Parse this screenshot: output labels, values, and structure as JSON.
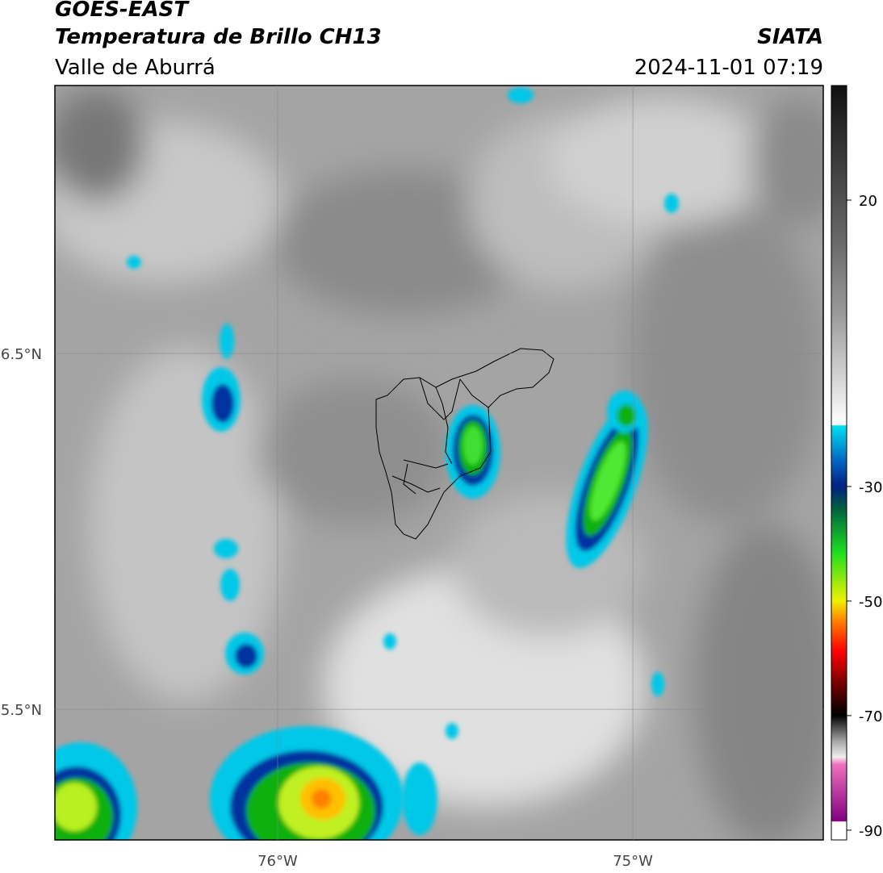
{
  "header": {
    "title": "GOES-EAST",
    "subtitle": "Temperatura de Brillo CH13",
    "region": "Valle de Aburrá",
    "source": "SIATA",
    "timestamp": "2024-11-01 07:19"
  },
  "map": {
    "xlim": [
      -76.627,
      -74.464
    ],
    "ylim": [
      5.133,
      7.253
    ],
    "xticks": [
      {
        "value": -76,
        "label": "76°W"
      },
      {
        "value": -75,
        "label": "75°W"
      }
    ],
    "yticks": [
      {
        "value": 6.5,
        "label": "6.5°N"
      },
      {
        "value": 5.5,
        "label": "5.5°N"
      }
    ],
    "grid": true
  },
  "colorbar": {
    "lim": [
      -91.7,
      40
    ],
    "ticks": [
      20,
      -30,
      -50,
      -70,
      -90
    ]
  }
}
